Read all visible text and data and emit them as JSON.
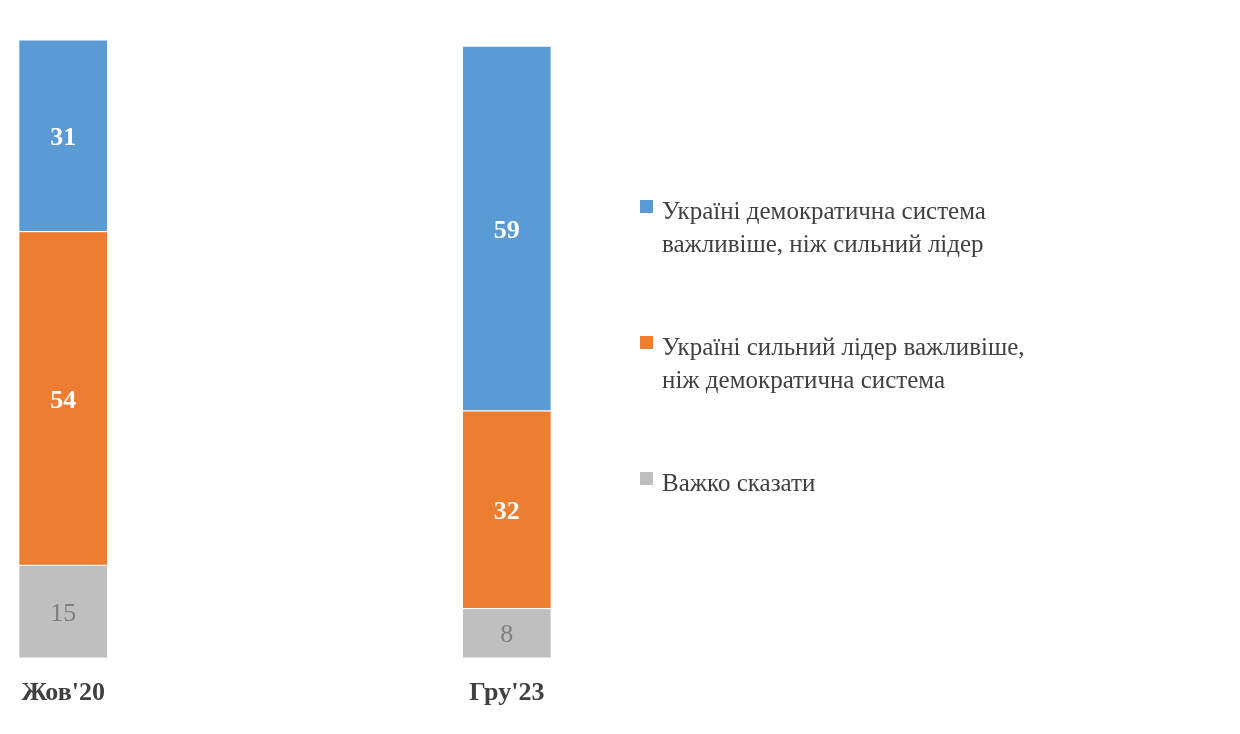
{
  "chart_data": {
    "type": "bar",
    "stacked": true,
    "categories": [
      "Жов'20",
      "Гру'23"
    ],
    "data_labels": true,
    "legend": "right",
    "series": [
      {
        "name": "Важко сказати",
        "color": "#bfbfbf",
        "values": [
          15,
          8
        ]
      },
      {
        "name": "Україні сильний лідер важливіше, ніж демократична система",
        "color": "#ed7d31",
        "values": [
          54,
          32
        ]
      },
      {
        "name": "Україні демократична система важливіше, ніж сильний лідер",
        "color": "#5b9bd5",
        "values": [
          31,
          59
        ]
      }
    ]
  }
}
